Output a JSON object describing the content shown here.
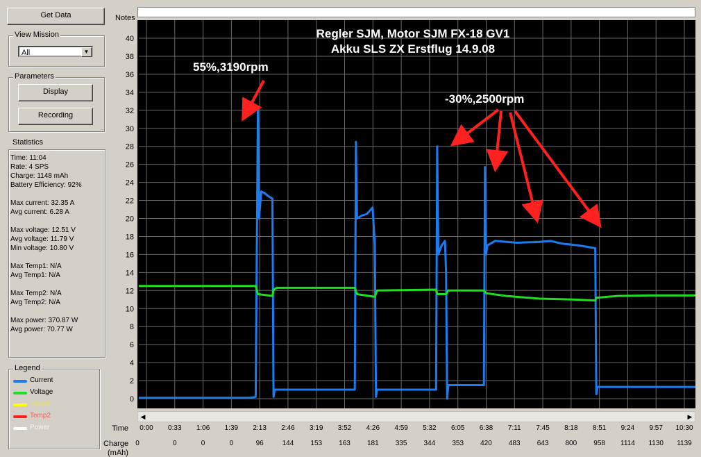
{
  "toolbar": {
    "get_data_label": "Get Data"
  },
  "view_mission": {
    "title": "View Mission",
    "selected": "All"
  },
  "parameters": {
    "title": "Parameters",
    "display_label": "Display",
    "recording_label": "Recording"
  },
  "statistics": {
    "title": "Statistics",
    "lines": [
      "Time: 11:04",
      "Rate: 4 SPS",
      "Charge: 1148 mAh",
      "Battery Efficiency: 92%",
      "",
      "Max current: 32.35 A",
      "Avg current: 6.28 A",
      "",
      "Max voltage: 12.51 V",
      "Avg voltage: 11.79 V",
      "Min voltage: 10.80 V",
      "",
      "Max Temp1: N/A",
      "Avg Temp1: N/A",
      "",
      "Max Temp2: N/A",
      "Avg Temp2: N/A",
      "",
      "Max power: 370.87 W",
      "Avg power: 70.77 W"
    ]
  },
  "legend": {
    "title": "Legend",
    "items": [
      {
        "label": "Current",
        "color": "#1c7cf0"
      },
      {
        "label": "Voltage",
        "color": "#22dd22"
      },
      {
        "label": "Temp1",
        "color": "#ffff00"
      },
      {
        "label": "Temp2",
        "color": "#ff2020"
      },
      {
        "label": "Power",
        "color": "#ffffff"
      }
    ]
  },
  "notes": {
    "label": "Notes",
    "value": ""
  },
  "axis_labels": {
    "time": "Time",
    "charge": "Charge",
    "charge_unit": "(mAh)"
  },
  "chart_data": {
    "type": "line",
    "title": "Regler SJM, Motor SJM FX-18 GV1",
    "subtitle": "Akku SLS ZX Erstflug 14.9.08",
    "ylim": [
      0,
      40
    ],
    "y_ticks": [
      0,
      2,
      4,
      6,
      8,
      10,
      12,
      14,
      16,
      18,
      20,
      22,
      24,
      26,
      28,
      30,
      32,
      34,
      36,
      38,
      40
    ],
    "x_ticks": [
      "0:00",
      "0:33",
      "1:06",
      "1:39",
      "2:13",
      "2:46",
      "3:19",
      "3:52",
      "4:26",
      "4:59",
      "5:32",
      "6:05",
      "6:38",
      "7:11",
      "7:45",
      "8:18",
      "8:51",
      "9:24",
      "9:57",
      "10:30"
    ],
    "charge_ticks": [
      "0",
      "0",
      "0",
      "0",
      "96",
      "144",
      "153",
      "163",
      "181",
      "335",
      "344",
      "353",
      "420",
      "483",
      "643",
      "800",
      "958",
      "1114",
      "1130",
      "1139"
    ],
    "grid": true,
    "background": "#000000",
    "series": [
      {
        "name": "Current",
        "color": "#1c7cf0",
        "points": [
          [
            0,
            0.1
          ],
          [
            40,
            0.1
          ],
          [
            100,
            0.1
          ],
          [
            105,
            0.2
          ],
          [
            107,
            32.3
          ],
          [
            108,
            20
          ],
          [
            110,
            23
          ],
          [
            113,
            22.8
          ],
          [
            116,
            22.5
          ],
          [
            120,
            22.2
          ],
          [
            121,
            0.2
          ],
          [
            122,
            1
          ],
          [
            140,
            1
          ],
          [
            180,
            1
          ],
          [
            194,
            1
          ],
          [
            195,
            28.5
          ],
          [
            196,
            20
          ],
          [
            200,
            20.3
          ],
          [
            205,
            20.5
          ],
          [
            210,
            21.2
          ],
          [
            212,
            17.2
          ],
          [
            213,
            0.2
          ],
          [
            214,
            1
          ],
          [
            240,
            1
          ],
          [
            267,
            1
          ],
          [
            268,
            28
          ],
          [
            269,
            16
          ],
          [
            272,
            17
          ],
          [
            275,
            17.5
          ],
          [
            276,
            14
          ],
          [
            277,
            0
          ],
          [
            278,
            1.5
          ],
          [
            300,
            1.5
          ],
          [
            310,
            1.5
          ],
          [
            311,
            25.7
          ],
          [
            312,
            16
          ],
          [
            313,
            17
          ],
          [
            320,
            17.5
          ],
          [
            340,
            17.3
          ],
          [
            360,
            17.4
          ],
          [
            370,
            17.5
          ],
          [
            380,
            17.2
          ],
          [
            395,
            17
          ],
          [
            405,
            16.8
          ],
          [
            410,
            16.7
          ],
          [
            411,
            0.5
          ],
          [
            412,
            1.3
          ],
          [
            450,
            1.3
          ],
          [
            480,
            1.3
          ],
          [
            500,
            1.3
          ]
        ]
      },
      {
        "name": "Voltage",
        "color": "#22dd22",
        "points": [
          [
            0,
            12.5
          ],
          [
            80,
            12.5
          ],
          [
            105,
            12.5
          ],
          [
            107,
            11.6
          ],
          [
            120,
            11.4
          ],
          [
            121,
            12.1
          ],
          [
            124,
            12.3
          ],
          [
            194,
            12.3
          ],
          [
            196,
            11.6
          ],
          [
            212,
            11.3
          ],
          [
            214,
            12.0
          ],
          [
            267,
            12.1
          ],
          [
            268,
            11.6
          ],
          [
            276,
            11.6
          ],
          [
            278,
            12.0
          ],
          [
            310,
            12.0
          ],
          [
            312,
            11.7
          ],
          [
            330,
            11.4
          ],
          [
            360,
            11.1
          ],
          [
            390,
            11.0
          ],
          [
            410,
            10.9
          ],
          [
            411,
            11.2
          ],
          [
            430,
            11.4
          ],
          [
            460,
            11.45
          ],
          [
            500,
            11.45
          ]
        ]
      }
    ],
    "annotations": [
      {
        "text": "55%,3190rpm",
        "color": "#ff2020"
      },
      {
        "text": "-30%,2500rpm",
        "color": "#ff2020"
      }
    ]
  }
}
